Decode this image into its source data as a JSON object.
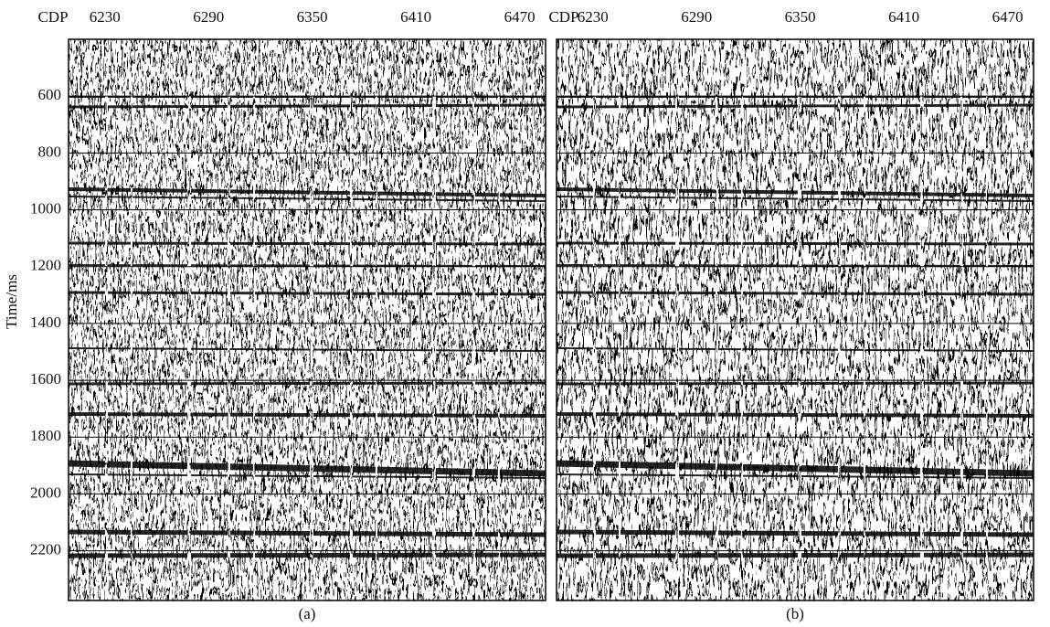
{
  "chart_data": [
    {
      "type": "seismic",
      "x_label": "CDP",
      "y_label": "Time/ms",
      "caption": "(a)",
      "xlim": [
        6209,
        6485
      ],
      "xticks": [
        6230,
        6290,
        6350,
        6410,
        6470
      ],
      "ylim": [
        400,
        2375
      ],
      "yticks": [
        600,
        800,
        1000,
        1200,
        1400,
        1600,
        1800,
        2000,
        2200
      ],
      "grid": true
    },
    {
      "type": "seismic",
      "x_label": "CDP",
      "caption": "(b)",
      "xlim": [
        6209,
        6485
      ],
      "xticks": [
        6230,
        6290,
        6350,
        6410,
        6470
      ],
      "ylim": [
        400,
        2375
      ],
      "yticks": [
        600,
        800,
        1000,
        1200,
        1400,
        1600,
        1800,
        2000,
        2200
      ],
      "grid": true
    }
  ]
}
